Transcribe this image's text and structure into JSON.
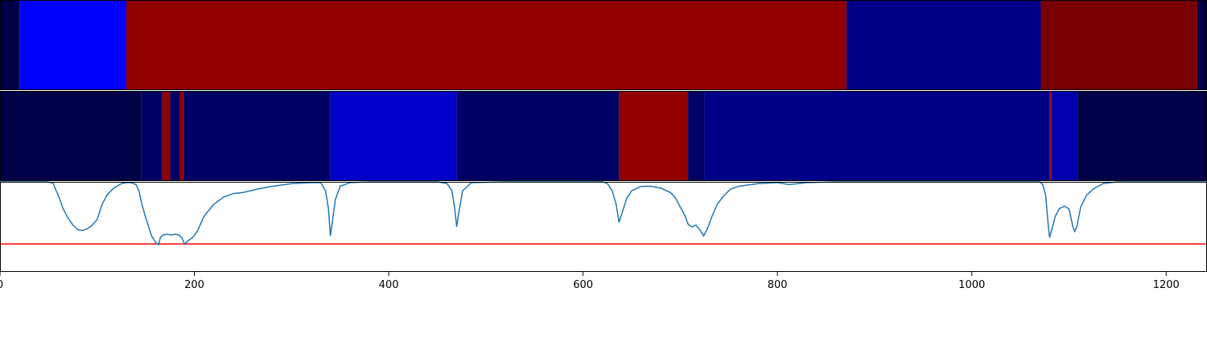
{
  "chart_data": [
    {
      "type": "heatmap",
      "title": "",
      "xlim": [
        0,
        1242
      ],
      "segments": [
        {
          "start": 0,
          "end": 20,
          "color": "#000046"
        },
        {
          "start": 20,
          "end": 130,
          "color": "#0000ff"
        },
        {
          "start": 130,
          "end": 871,
          "color": "#920000"
        },
        {
          "start": 871,
          "end": 1071,
          "color": "#000088"
        },
        {
          "start": 1071,
          "end": 1232,
          "color": "#7a0000"
        },
        {
          "start": 1232,
          "end": 1242,
          "color": "#000046"
        }
      ]
    },
    {
      "type": "heatmap",
      "title": "",
      "xlim": [
        0,
        1242
      ],
      "segments": [
        {
          "start": 0,
          "end": 145,
          "color": "#000046"
        },
        {
          "start": 145,
          "end": 167,
          "color": "#000064"
        },
        {
          "start": 167,
          "end": 175,
          "color": "#920000"
        },
        {
          "start": 175,
          "end": 185,
          "color": "#000064"
        },
        {
          "start": 185,
          "end": 189,
          "color": "#920000"
        },
        {
          "start": 189,
          "end": 340,
          "color": "#000064"
        },
        {
          "start": 340,
          "end": 470,
          "color": "#0000c8"
        },
        {
          "start": 470,
          "end": 637,
          "color": "#000064"
        },
        {
          "start": 637,
          "end": 708,
          "color": "#920000"
        },
        {
          "start": 708,
          "end": 725,
          "color": "#000064"
        },
        {
          "start": 725,
          "end": 1080,
          "color": "#000088"
        },
        {
          "start": 1080,
          "end": 1082,
          "color": "#920000"
        },
        {
          "start": 1082,
          "end": 1109,
          "color": "#0000aa"
        },
        {
          "start": 1109,
          "end": 1242,
          "color": "#000046"
        }
      ]
    },
    {
      "type": "line",
      "title": "",
      "xlabel": "",
      "ylabel": "",
      "xlim": [
        0,
        1242
      ],
      "ylim": [
        0,
        1
      ],
      "xticks": [
        0,
        200,
        400,
        600,
        800,
        1000,
        1200
      ],
      "grid": false,
      "threshold": {
        "value": 0.31,
        "color": "#ff0000"
      },
      "series": [
        {
          "color": "#1f77b4",
          "points": [
            [
              0,
              1.0
            ],
            [
              50,
              1.0
            ],
            [
              55,
              0.98
            ],
            [
              57,
              0.92
            ],
            [
              60,
              0.85
            ],
            [
              65,
              0.7
            ],
            [
              70,
              0.6
            ],
            [
              75,
              0.52
            ],
            [
              80,
              0.47
            ],
            [
              85,
              0.46
            ],
            [
              90,
              0.48
            ],
            [
              95,
              0.52
            ],
            [
              100,
              0.58
            ],
            [
              105,
              0.75
            ],
            [
              110,
              0.85
            ],
            [
              115,
              0.91
            ],
            [
              120,
              0.95
            ],
            [
              125,
              0.98
            ],
            [
              130,
              0.99
            ],
            [
              135,
              0.99
            ],
            [
              140,
              0.97
            ],
            [
              143,
              0.9
            ],
            [
              146,
              0.75
            ],
            [
              150,
              0.6
            ],
            [
              153,
              0.5
            ],
            [
              156,
              0.4
            ],
            [
              160,
              0.33
            ],
            [
              163,
              0.3
            ],
            [
              165,
              0.38
            ],
            [
              168,
              0.41
            ],
            [
              172,
              0.42
            ],
            [
              176,
              0.41
            ],
            [
              180,
              0.42
            ],
            [
              184,
              0.41
            ],
            [
              187,
              0.38
            ],
            [
              190,
              0.31
            ],
            [
              194,
              0.35
            ],
            [
              198,
              0.38
            ],
            [
              203,
              0.45
            ],
            [
              210,
              0.62
            ],
            [
              220,
              0.75
            ],
            [
              230,
              0.83
            ],
            [
              240,
              0.87
            ],
            [
              250,
              0.88
            ],
            [
              265,
              0.92
            ],
            [
              280,
              0.95
            ],
            [
              300,
              0.98
            ],
            [
              320,
              0.99
            ],
            [
              330,
              0.99
            ],
            [
              335,
              0.9
            ],
            [
              338,
              0.7
            ],
            [
              340,
              0.4
            ],
            [
              342,
              0.55
            ],
            [
              345,
              0.8
            ],
            [
              350,
              0.95
            ],
            [
              360,
              0.99
            ],
            [
              380,
              1.0
            ],
            [
              450,
              1.0
            ],
            [
              460,
              0.98
            ],
            [
              465,
              0.9
            ],
            [
              468,
              0.7
            ],
            [
              470,
              0.5
            ],
            [
              472,
              0.65
            ],
            [
              476,
              0.9
            ],
            [
              485,
              0.99
            ],
            [
              520,
              1.0
            ],
            [
              620,
              1.0
            ],
            [
              625,
              0.98
            ],
            [
              630,
              0.9
            ],
            [
              634,
              0.75
            ],
            [
              637,
              0.55
            ],
            [
              640,
              0.65
            ],
            [
              645,
              0.82
            ],
            [
              650,
              0.9
            ],
            [
              660,
              0.95
            ],
            [
              670,
              0.95
            ],
            [
              680,
              0.93
            ],
            [
              690,
              0.88
            ],
            [
              695,
              0.82
            ],
            [
              700,
              0.72
            ],
            [
              705,
              0.62
            ],
            [
              708,
              0.53
            ],
            [
              712,
              0.5
            ],
            [
              716,
              0.52
            ],
            [
              720,
              0.47
            ],
            [
              724,
              0.4
            ],
            [
              728,
              0.48
            ],
            [
              732,
              0.6
            ],
            [
              738,
              0.75
            ],
            [
              745,
              0.85
            ],
            [
              752,
              0.92
            ],
            [
              760,
              0.95
            ],
            [
              780,
              0.98
            ],
            [
              800,
              0.99
            ],
            [
              812,
              0.97
            ],
            [
              830,
              0.99
            ],
            [
              860,
              1.0
            ],
            [
              1070,
              1.0
            ],
            [
              1073,
              0.97
            ],
            [
              1076,
              0.85
            ],
            [
              1078,
              0.6
            ],
            [
              1080,
              0.38
            ],
            [
              1083,
              0.5
            ],
            [
              1086,
              0.62
            ],
            [
              1090,
              0.7
            ],
            [
              1095,
              0.73
            ],
            [
              1100,
              0.7
            ],
            [
              1104,
              0.5
            ],
            [
              1106,
              0.45
            ],
            [
              1108,
              0.5
            ],
            [
              1112,
              0.72
            ],
            [
              1118,
              0.85
            ],
            [
              1125,
              0.92
            ],
            [
              1135,
              0.98
            ],
            [
              1150,
              1.0
            ],
            [
              1242,
              1.0
            ]
          ]
        }
      ]
    }
  ]
}
